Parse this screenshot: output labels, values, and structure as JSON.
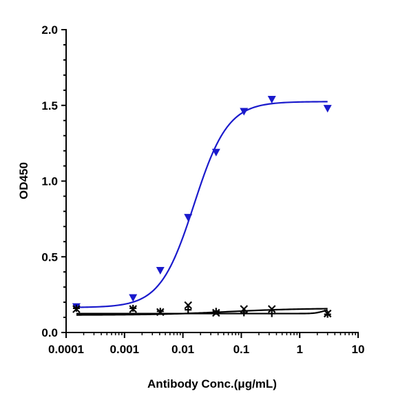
{
  "chart_data": {
    "type": "scatter",
    "title": "",
    "xlabel": "Antibody Conc.(μg/mL)",
    "ylabel": "OD450",
    "xscale": "log",
    "xlim": [
      0.0001,
      10
    ],
    "ylim": [
      0,
      2.0
    ],
    "x_ticks": [
      "0.0001",
      "0.001",
      "0.01",
      "0.1",
      "1",
      "10"
    ],
    "y_ticks": [
      "0.0",
      "0.5",
      "1.0",
      "1.5",
      "2.0"
    ],
    "grid": false,
    "legend": "none",
    "series": [
      {
        "color": "#1a1acc",
        "marker": "triangle-down",
        "x": [
          0.00015,
          0.0014,
          0.0041,
          0.0123,
          0.037,
          0.111,
          0.333,
          3.0
        ],
        "y": [
          0.17,
          0.23,
          0.41,
          0.76,
          1.19,
          1.46,
          1.54,
          1.48
        ],
        "fit": {
          "bottom": 0.165,
          "top": 1.525,
          "ec50": 0.0155,
          "hill": 1.5
        }
      },
      {
        "color": "#000000",
        "marker": "x",
        "x": [
          0.00015,
          0.0014,
          0.0041,
          0.0123,
          0.037,
          0.111,
          0.333,
          3.0
        ],
        "y": [
          0.155,
          0.155,
          0.135,
          0.18,
          0.13,
          0.155,
          0.155,
          0.125
        ],
        "fit": {
          "bottom": 0.125,
          "top": 0.155,
          "ec50": 2.5,
          "hill": 6
        }
      },
      {
        "color": "#000000",
        "marker": "plus",
        "x": [
          0.00015,
          0.0014,
          0.0041,
          0.0123,
          0.037,
          0.111,
          0.333,
          3.0
        ],
        "y": [
          0.16,
          0.16,
          0.14,
          0.15,
          0.14,
          0.13,
          0.125,
          0.12
        ],
        "fit": {
          "bottom": 0.115,
          "top": 0.16,
          "ec50": 0.06,
          "hill": 0.7
        }
      }
    ]
  }
}
